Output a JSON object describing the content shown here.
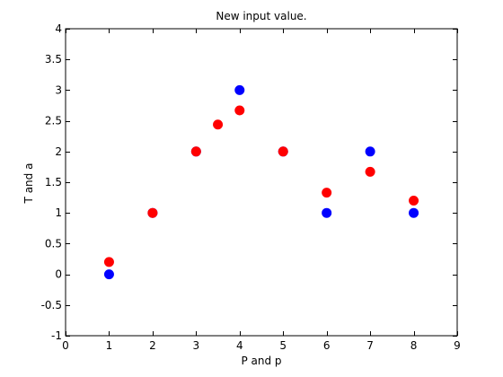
{
  "chart_data": {
    "type": "scatter",
    "title": "New input value.",
    "xlabel": "P and p",
    "ylabel": "T and a",
    "xlim": [
      0,
      9
    ],
    "ylim": [
      -1,
      4
    ],
    "xticks": [
      "0",
      "1",
      "2",
      "3",
      "4",
      "5",
      "6",
      "7",
      "8",
      "9"
    ],
    "yticks": [
      "-1",
      "-0.5",
      "0",
      "0.5",
      "1",
      "1.5",
      "2",
      "2.5",
      "3",
      "3.5",
      "4"
    ],
    "grid": false,
    "legend": "none",
    "series": [
      {
        "color": "#0000ff",
        "marker": "circle",
        "points": [
          {
            "x": 1,
            "y": 0
          },
          {
            "x": 2,
            "y": 1
          },
          {
            "x": 3,
            "y": 2
          },
          {
            "x": 4,
            "y": 3
          },
          {
            "x": 5,
            "y": 2
          },
          {
            "x": 6,
            "y": 1
          },
          {
            "x": 7,
            "y": 2
          },
          {
            "x": 8,
            "y": 1
          }
        ]
      },
      {
        "color": "#ff0000",
        "marker": "circle",
        "points": [
          {
            "x": 1,
            "y": 0.2
          },
          {
            "x": 2,
            "y": 1
          },
          {
            "x": 3,
            "y": 2
          },
          {
            "x": 3.5,
            "y": 2.44
          },
          {
            "x": 4,
            "y": 2.67
          },
          {
            "x": 5,
            "y": 2
          },
          {
            "x": 6,
            "y": 1.33
          },
          {
            "x": 7,
            "y": 1.67
          },
          {
            "x": 8,
            "y": 1.2
          }
        ]
      }
    ]
  }
}
